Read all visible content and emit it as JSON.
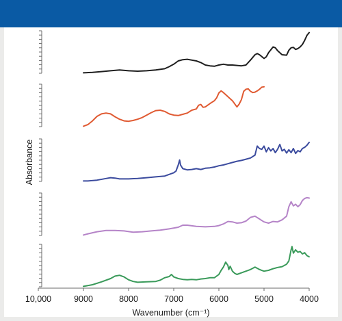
{
  "header": {
    "band_color": "#0a5aa4"
  },
  "chart_data": {
    "type": "line",
    "title": "",
    "xlabel": "Wavenumber (cm⁻¹)",
    "ylabel": "Absorbance",
    "x_reversed": true,
    "xlim": [
      10000,
      4000
    ],
    "xticks": [
      10000,
      9000,
      8000,
      7000,
      6000,
      5000,
      4000
    ],
    "xtick_labels": [
      "10,000",
      "9000",
      "8000",
      "7000",
      "6000",
      "5000",
      "4000"
    ],
    "x_domain": [
      9000,
      4000
    ],
    "grid": false,
    "legend": "none",
    "panel_ylim": [
      0,
      1
    ],
    "series": [
      {
        "color": "#1e1e1e",
        "points": [
          [
            9000,
            0.01
          ],
          [
            8800,
            0.02
          ],
          [
            8600,
            0.04
          ],
          [
            8400,
            0.06
          ],
          [
            8200,
            0.08
          ],
          [
            8000,
            0.06
          ],
          [
            7800,
            0.05
          ],
          [
            7600,
            0.06
          ],
          [
            7400,
            0.08
          ],
          [
            7200,
            0.11
          ],
          [
            7100,
            0.16
          ],
          [
            7000,
            0.22
          ],
          [
            6900,
            0.3
          ],
          [
            6800,
            0.33
          ],
          [
            6700,
            0.34
          ],
          [
            6600,
            0.32
          ],
          [
            6500,
            0.3
          ],
          [
            6400,
            0.26
          ],
          [
            6300,
            0.2
          ],
          [
            6200,
            0.18
          ],
          [
            6100,
            0.17
          ],
          [
            6000,
            0.2
          ],
          [
            5900,
            0.22
          ],
          [
            5800,
            0.2
          ],
          [
            5700,
            0.2
          ],
          [
            5600,
            0.19
          ],
          [
            5500,
            0.18
          ],
          [
            5400,
            0.2
          ],
          [
            5300,
            0.32
          ],
          [
            5200,
            0.45
          ],
          [
            5150,
            0.48
          ],
          [
            5100,
            0.45
          ],
          [
            5000,
            0.36
          ],
          [
            4950,
            0.4
          ],
          [
            4900,
            0.5
          ],
          [
            4800,
            0.64
          ],
          [
            4750,
            0.62
          ],
          [
            4700,
            0.55
          ],
          [
            4600,
            0.45
          ],
          [
            4500,
            0.44
          ],
          [
            4450,
            0.56
          ],
          [
            4400,
            0.62
          ],
          [
            4350,
            0.63
          ],
          [
            4300,
            0.58
          ],
          [
            4250,
            0.6
          ],
          [
            4200,
            0.64
          ],
          [
            4150,
            0.7
          ],
          [
            4100,
            0.8
          ],
          [
            4050,
            0.92
          ],
          [
            4000,
            0.99
          ]
        ]
      },
      {
        "color": "#e05a32",
        "points": [
          [
            9000,
            0.01
          ],
          [
            8900,
            0.05
          ],
          [
            8800,
            0.14
          ],
          [
            8700,
            0.25
          ],
          [
            8600,
            0.31
          ],
          [
            8500,
            0.33
          ],
          [
            8400,
            0.31
          ],
          [
            8300,
            0.24
          ],
          [
            8200,
            0.18
          ],
          [
            8100,
            0.14
          ],
          [
            8000,
            0.13
          ],
          [
            7900,
            0.15
          ],
          [
            7800,
            0.18
          ],
          [
            7700,
            0.22
          ],
          [
            7600,
            0.28
          ],
          [
            7500,
            0.34
          ],
          [
            7400,
            0.39
          ],
          [
            7300,
            0.4
          ],
          [
            7200,
            0.37
          ],
          [
            7100,
            0.31
          ],
          [
            7000,
            0.28
          ],
          [
            6900,
            0.27
          ],
          [
            6800,
            0.3
          ],
          [
            6700,
            0.33
          ],
          [
            6600,
            0.4
          ],
          [
            6500,
            0.43
          ],
          [
            6450,
            0.52
          ],
          [
            6400,
            0.54
          ],
          [
            6350,
            0.47
          ],
          [
            6300,
            0.48
          ],
          [
            6200,
            0.56
          ],
          [
            6100,
            0.63
          ],
          [
            6050,
            0.7
          ],
          [
            6000,
            0.82
          ],
          [
            5950,
            0.87
          ],
          [
            5900,
            0.83
          ],
          [
            5800,
            0.73
          ],
          [
            5700,
            0.63
          ],
          [
            5600,
            0.48
          ],
          [
            5550,
            0.55
          ],
          [
            5500,
            0.66
          ],
          [
            5450,
            0.86
          ],
          [
            5400,
            0.91
          ],
          [
            5350,
            0.92
          ],
          [
            5300,
            0.86
          ],
          [
            5250,
            0.83
          ],
          [
            5200,
            0.84
          ],
          [
            5150,
            0.87
          ],
          [
            5100,
            0.91
          ],
          [
            5050,
            0.96
          ],
          [
            5000,
            0.97
          ]
        ]
      },
      {
        "color": "#3b4b9e",
        "points": [
          [
            9000,
            0.01
          ],
          [
            8900,
            0.01
          ],
          [
            8700,
            0.03
          ],
          [
            8500,
            0.07
          ],
          [
            8400,
            0.09
          ],
          [
            8300,
            0.08
          ],
          [
            8200,
            0.06
          ],
          [
            8000,
            0.06
          ],
          [
            7800,
            0.07
          ],
          [
            7600,
            0.09
          ],
          [
            7400,
            0.11
          ],
          [
            7200,
            0.13
          ],
          [
            7100,
            0.17
          ],
          [
            7000,
            0.21
          ],
          [
            6950,
            0.25
          ],
          [
            6900,
            0.4
          ],
          [
            6870,
            0.52
          ],
          [
            6850,
            0.4
          ],
          [
            6800,
            0.31
          ],
          [
            6700,
            0.28
          ],
          [
            6600,
            0.29
          ],
          [
            6500,
            0.31
          ],
          [
            6400,
            0.29
          ],
          [
            6300,
            0.32
          ],
          [
            6200,
            0.33
          ],
          [
            6100,
            0.35
          ],
          [
            6000,
            0.38
          ],
          [
            5900,
            0.4
          ],
          [
            5800,
            0.43
          ],
          [
            5700,
            0.46
          ],
          [
            5600,
            0.49
          ],
          [
            5500,
            0.51
          ],
          [
            5400,
            0.54
          ],
          [
            5300,
            0.57
          ],
          [
            5200,
            0.64
          ],
          [
            5150,
            0.86
          ],
          [
            5100,
            0.8
          ],
          [
            5050,
            0.78
          ],
          [
            5000,
            0.86
          ],
          [
            4950,
            0.72
          ],
          [
            4900,
            0.82
          ],
          [
            4850,
            0.74
          ],
          [
            4800,
            0.8
          ],
          [
            4750,
            0.7
          ],
          [
            4700,
            0.78
          ],
          [
            4650,
            0.9
          ],
          [
            4600,
            0.74
          ],
          [
            4550,
            0.78
          ],
          [
            4500,
            0.69
          ],
          [
            4450,
            0.77
          ],
          [
            4400,
            0.7
          ],
          [
            4350,
            0.8
          ],
          [
            4300,
            0.68
          ],
          [
            4250,
            0.75
          ],
          [
            4200,
            0.72
          ],
          [
            4150,
            0.8
          ],
          [
            4100,
            0.83
          ],
          [
            4050,
            0.88
          ],
          [
            4000,
            0.95
          ]
        ]
      },
      {
        "color": "#b584c8",
        "points": [
          [
            9000,
            0.01
          ],
          [
            8900,
            0.04
          ],
          [
            8700,
            0.09
          ],
          [
            8500,
            0.12
          ],
          [
            8300,
            0.12
          ],
          [
            8100,
            0.11
          ],
          [
            7900,
            0.08
          ],
          [
            7700,
            0.09
          ],
          [
            7500,
            0.11
          ],
          [
            7300,
            0.13
          ],
          [
            7100,
            0.16
          ],
          [
            6900,
            0.2
          ],
          [
            6800,
            0.25
          ],
          [
            6700,
            0.25
          ],
          [
            6500,
            0.22
          ],
          [
            6300,
            0.21
          ],
          [
            6100,
            0.22
          ],
          [
            6000,
            0.24
          ],
          [
            5900,
            0.28
          ],
          [
            5800,
            0.34
          ],
          [
            5700,
            0.33
          ],
          [
            5600,
            0.3
          ],
          [
            5500,
            0.31
          ],
          [
            5400,
            0.35
          ],
          [
            5300,
            0.44
          ],
          [
            5200,
            0.47
          ],
          [
            5100,
            0.4
          ],
          [
            5000,
            0.33
          ],
          [
            4900,
            0.3
          ],
          [
            4800,
            0.34
          ],
          [
            4700,
            0.33
          ],
          [
            4600,
            0.38
          ],
          [
            4500,
            0.47
          ],
          [
            4450,
            0.7
          ],
          [
            4400,
            0.82
          ],
          [
            4350,
            0.72
          ],
          [
            4300,
            0.76
          ],
          [
            4250,
            0.7
          ],
          [
            4200,
            0.75
          ],
          [
            4150,
            0.85
          ],
          [
            4100,
            0.9
          ],
          [
            4050,
            0.92
          ],
          [
            4000,
            0.91
          ]
        ]
      },
      {
        "color": "#3a9a5a",
        "points": [
          [
            9000,
            0.01
          ],
          [
            8800,
            0.05
          ],
          [
            8600,
            0.12
          ],
          [
            8400,
            0.2
          ],
          [
            8300,
            0.26
          ],
          [
            8200,
            0.28
          ],
          [
            8100,
            0.24
          ],
          [
            8000,
            0.17
          ],
          [
            7900,
            0.13
          ],
          [
            7800,
            0.11
          ],
          [
            7600,
            0.12
          ],
          [
            7400,
            0.13
          ],
          [
            7300,
            0.16
          ],
          [
            7200,
            0.22
          ],
          [
            7100,
            0.25
          ],
          [
            7050,
            0.3
          ],
          [
            7000,
            0.24
          ],
          [
            6900,
            0.2
          ],
          [
            6800,
            0.18
          ],
          [
            6700,
            0.17
          ],
          [
            6600,
            0.18
          ],
          [
            6500,
            0.17
          ],
          [
            6400,
            0.19
          ],
          [
            6300,
            0.2
          ],
          [
            6200,
            0.22
          ],
          [
            6100,
            0.22
          ],
          [
            6000,
            0.3
          ],
          [
            5950,
            0.4
          ],
          [
            5900,
            0.48
          ],
          [
            5850,
            0.6
          ],
          [
            5800,
            0.52
          ],
          [
            5780,
            0.42
          ],
          [
            5750,
            0.5
          ],
          [
            5700,
            0.38
          ],
          [
            5650,
            0.33
          ],
          [
            5600,
            0.3
          ],
          [
            5500,
            0.34
          ],
          [
            5400,
            0.38
          ],
          [
            5300,
            0.42
          ],
          [
            5200,
            0.48
          ],
          [
            5100,
            0.42
          ],
          [
            5000,
            0.38
          ],
          [
            4900,
            0.4
          ],
          [
            4800,
            0.44
          ],
          [
            4700,
            0.47
          ],
          [
            4600,
            0.49
          ],
          [
            4500,
            0.55
          ],
          [
            4450,
            0.63
          ],
          [
            4400,
            0.9
          ],
          [
            4380,
            0.98
          ],
          [
            4350,
            0.82
          ],
          [
            4300,
            0.9
          ],
          [
            4250,
            0.84
          ],
          [
            4200,
            0.86
          ],
          [
            4150,
            0.8
          ],
          [
            4100,
            0.83
          ],
          [
            4050,
            0.76
          ],
          [
            4000,
            0.73
          ]
        ]
      }
    ]
  }
}
